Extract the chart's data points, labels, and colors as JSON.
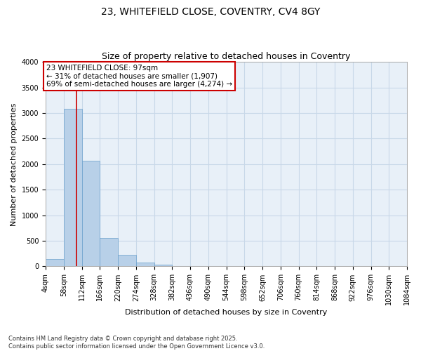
{
  "title_line1": "23, WHITEFIELD CLOSE, COVENTRY, CV4 8GY",
  "title_line2": "Size of property relative to detached houses in Coventry",
  "xlabel": "Distribution of detached houses by size in Coventry",
  "ylabel": "Number of detached properties",
  "bar_values": [
    150,
    3080,
    2060,
    560,
    220,
    75,
    30,
    10,
    5,
    3,
    2,
    1,
    1,
    1,
    1,
    1,
    1,
    1,
    1,
    1
  ],
  "bin_edges": [
    4,
    58,
    112,
    166,
    220,
    274,
    328,
    382,
    436,
    490,
    544,
    598,
    652,
    706,
    760,
    814,
    868,
    922,
    976,
    1030,
    1084
  ],
  "bin_labels": [
    "4sqm",
    "58sqm",
    "112sqm",
    "166sqm",
    "220sqm",
    "274sqm",
    "328sqm",
    "382sqm",
    "436sqm",
    "490sqm",
    "544sqm",
    "598sqm",
    "652sqm",
    "706sqm",
    "760sqm",
    "814sqm",
    "868sqm",
    "922sqm",
    "976sqm",
    "1030sqm",
    "1084sqm"
  ],
  "bar_color": "#b8d0e8",
  "bar_edge_color": "#6aa0cc",
  "property_size": 97,
  "red_line_x": 97,
  "annotation_text": "23 WHITEFIELD CLOSE: 97sqm\n← 31% of detached houses are smaller (1,907)\n69% of semi-detached houses are larger (4,274) →",
  "annotation_box_color": "#ffffff",
  "annotation_box_edge_color": "#cc0000",
  "ylim": [
    0,
    4000
  ],
  "yticks": [
    0,
    500,
    1000,
    1500,
    2000,
    2500,
    3000,
    3500,
    4000
  ],
  "background_color": "#ffffff",
  "grid_color": "#c8d8e8",
  "footnote": "Contains HM Land Registry data © Crown copyright and database right 2025.\nContains public sector information licensed under the Open Government Licence v3.0.",
  "title_fontsize": 10,
  "subtitle_fontsize": 9,
  "axis_label_fontsize": 8,
  "tick_fontsize": 7,
  "annotation_fontsize": 7.5
}
